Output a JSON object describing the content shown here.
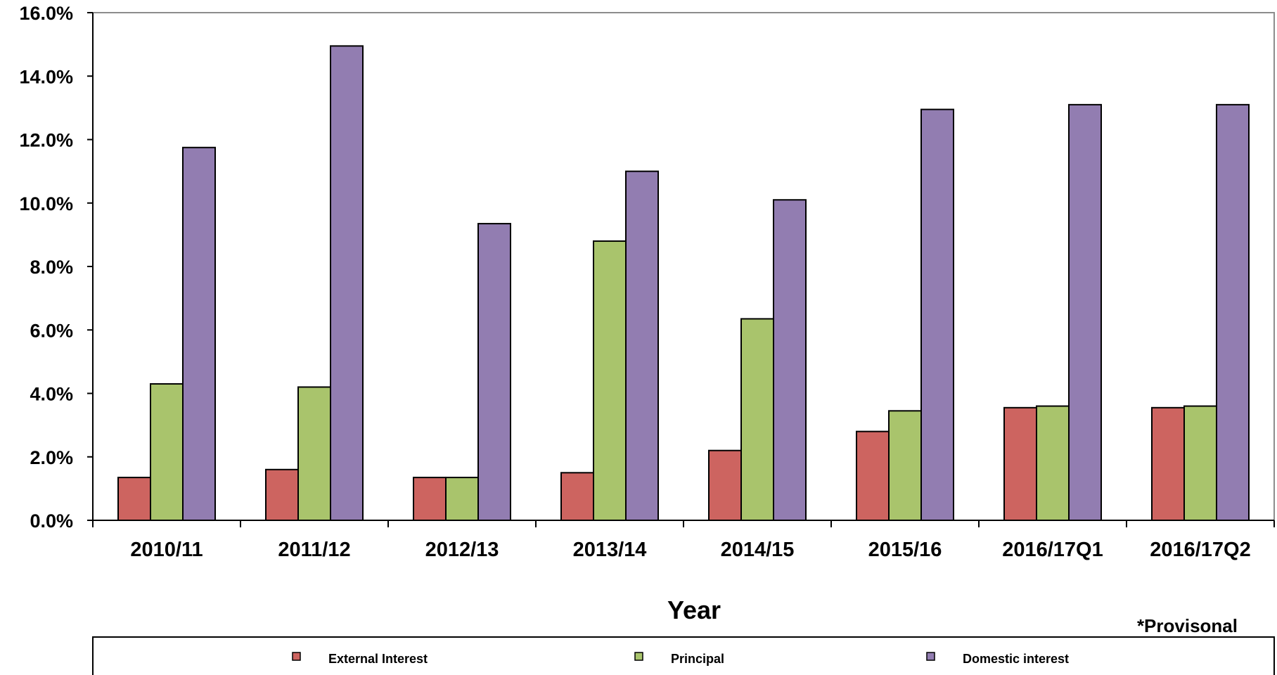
{
  "chart_data": {
    "type": "bar",
    "categories": [
      "2010/11",
      "2011/12",
      "2012/13",
      "2013/14",
      "2014/15",
      "2015/16",
      "2016/17Q1",
      "2016/17Q2"
    ],
    "series": [
      {
        "name": "External Interest",
        "color": "#cd6460",
        "values": [
          1.35,
          1.6,
          1.35,
          1.5,
          2.2,
          2.8,
          3.55,
          3.55
        ]
      },
      {
        "name": "Principal",
        "color": "#a9c46c",
        "values": [
          4.3,
          4.2,
          1.35,
          8.8,
          6.35,
          3.45,
          3.6,
          3.6
        ]
      },
      {
        "name": "Domestic interest",
        "color": "#927db1",
        "values": [
          11.75,
          14.95,
          9.35,
          11.0,
          10.1,
          12.95,
          13.1,
          13.1
        ]
      }
    ],
    "yticks": [
      "0.0%",
      "2.0%",
      "4.0%",
      "6.0%",
      "8.0%",
      "10.0%",
      "12.0%",
      "14.0%",
      "16.0%"
    ],
    "ylim": [
      0,
      16
    ],
    "xlabel": "Year",
    "ylabel": "",
    "title": "",
    "note": "*Provisonal",
    "legend_position": "bottom",
    "grid": false
  }
}
